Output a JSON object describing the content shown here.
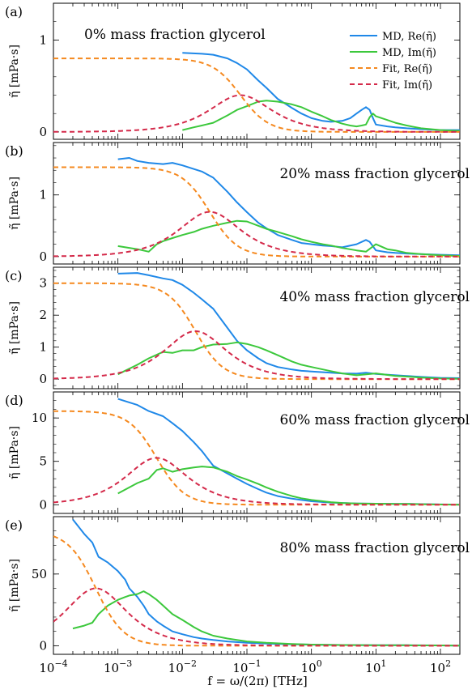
{
  "colors": {
    "md_re": "#1f88e8",
    "md_im": "#3cc83c",
    "fit_re": "#f5891f",
    "fit_im": "#d42a4a"
  },
  "legend": {
    "items": [
      {
        "label": "MD, Re(η̃)",
        "style": "solid",
        "color": "#1f88e8"
      },
      {
        "label": "MD, Im(η̃)",
        "style": "solid",
        "color": "#3cc83c"
      },
      {
        "label": "Fit, Re(η̃)",
        "style": "dashed",
        "color": "#f5891f"
      },
      {
        "label": "Fit, Im(η̃)",
        "style": "dashed",
        "color": "#d42a4a"
      }
    ]
  },
  "xaxis": {
    "label": "f = ω/(2π) [THz]",
    "scale": "log",
    "xlim": [
      0.0001,
      200
    ],
    "ticks": [
      {
        "base": "10",
        "exp": "−4"
      },
      {
        "base": "10",
        "exp": "−3"
      },
      {
        "base": "10",
        "exp": "−2"
      },
      {
        "base": "10",
        "exp": "−1"
      },
      {
        "base": "10",
        "exp": "0"
      },
      {
        "base": "10",
        "exp": "1"
      },
      {
        "base": "10",
        "exp": "2"
      }
    ]
  },
  "chart_data": [
    {
      "type": "line",
      "panel_label": "(a)",
      "title": "0% mass fraction glycerol",
      "ylabel": "η̃ [mPa·s]",
      "ylim": [
        -0.08,
        1.4
      ],
      "yticks": [
        0,
        1
      ],
      "xscale": "log",
      "series": [
        {
          "name": "MD, Re(η̃)",
          "x": [
            0.01,
            0.02,
            0.03,
            0.05,
            0.07,
            0.1,
            0.15,
            0.2,
            0.3,
            0.5,
            0.7,
            1,
            1.5,
            2,
            3,
            4,
            5,
            6,
            7,
            8,
            9,
            10,
            15,
            20,
            30,
            50,
            100,
            200
          ],
          "y": [
            0.86,
            0.85,
            0.84,
            0.8,
            0.75,
            0.68,
            0.56,
            0.48,
            0.36,
            0.26,
            0.2,
            0.15,
            0.12,
            0.11,
            0.12,
            0.15,
            0.2,
            0.24,
            0.27,
            0.24,
            0.15,
            0.08,
            0.06,
            0.05,
            0.04,
            0.03,
            0.02,
            0.02
          ]
        },
        {
          "name": "MD, Im(η̃)",
          "x": [
            0.01,
            0.015,
            0.02,
            0.03,
            0.05,
            0.07,
            0.1,
            0.15,
            0.2,
            0.3,
            0.5,
            0.7,
            1,
            1.5,
            2,
            3,
            4,
            5,
            6,
            7,
            8,
            9,
            10,
            15,
            20,
            30,
            50,
            100,
            200
          ],
          "y": [
            0.02,
            0.05,
            0.07,
            0.1,
            0.18,
            0.24,
            0.28,
            0.33,
            0.34,
            0.33,
            0.3,
            0.27,
            0.22,
            0.17,
            0.13,
            0.09,
            0.07,
            0.06,
            0.07,
            0.08,
            0.16,
            0.2,
            0.17,
            0.13,
            0.1,
            0.07,
            0.04,
            0.02,
            0.01
          ]
        },
        {
          "name": "Fit, Re(η̃)",
          "model": "debye",
          "eta0": 0.8,
          "tau": 2.0,
          "x": [],
          "y": []
        },
        {
          "name": "Fit, Im(η̃)",
          "model": "debye",
          "eta0": 0.8,
          "tau": 2.0,
          "x": [],
          "y": []
        }
      ]
    },
    {
      "type": "line",
      "panel_label": "(b)",
      "title": "20% mass fraction glycerol",
      "ylabel": "η̃ [mPa·s]",
      "ylim": [
        -0.12,
        1.85
      ],
      "yticks": [
        0,
        1
      ],
      "xscale": "log",
      "series": [
        {
          "name": "MD, Re(η̃)",
          "x": [
            0.001,
            0.0015,
            0.002,
            0.003,
            0.005,
            0.007,
            0.01,
            0.015,
            0.02,
            0.03,
            0.05,
            0.07,
            0.1,
            0.15,
            0.2,
            0.3,
            0.5,
            0.7,
            1,
            1.5,
            2,
            3,
            5,
            7,
            8,
            10,
            15,
            20,
            30,
            50,
            100,
            200
          ],
          "y": [
            1.58,
            1.6,
            1.55,
            1.52,
            1.5,
            1.52,
            1.48,
            1.42,
            1.38,
            1.28,
            1.05,
            0.88,
            0.72,
            0.55,
            0.46,
            0.35,
            0.27,
            0.22,
            0.2,
            0.18,
            0.17,
            0.15,
            0.2,
            0.27,
            0.24,
            0.1,
            0.07,
            0.06,
            0.05,
            0.04,
            0.03,
            0.02
          ]
        },
        {
          "name": "MD, Im(η̃)",
          "x": [
            0.001,
            0.002,
            0.003,
            0.004,
            0.005,
            0.007,
            0.01,
            0.015,
            0.02,
            0.03,
            0.05,
            0.07,
            0.1,
            0.15,
            0.2,
            0.3,
            0.5,
            0.7,
            1,
            1.5,
            2,
            3,
            5,
            7,
            10,
            15,
            20,
            30,
            50,
            100,
            200
          ],
          "y": [
            0.17,
            0.12,
            0.08,
            0.2,
            0.25,
            0.3,
            0.35,
            0.4,
            0.45,
            0.5,
            0.55,
            0.58,
            0.57,
            0.5,
            0.45,
            0.4,
            0.33,
            0.28,
            0.24,
            0.2,
            0.18,
            0.14,
            0.1,
            0.08,
            0.2,
            0.12,
            0.1,
            0.06,
            0.04,
            0.02,
            0.01
          ]
        },
        {
          "name": "Fit, Re(η̃)",
          "model": "debye",
          "eta0": 1.45,
          "tau": 6.0,
          "x": [],
          "y": []
        },
        {
          "name": "Fit, Im(η̃)",
          "model": "debye",
          "eta0": 1.45,
          "tau": 6.0,
          "x": [],
          "y": []
        }
      ]
    },
    {
      "type": "line",
      "panel_label": "(c)",
      "title": "40% mass fraction glycerol",
      "ylabel": "η̃ [mPa·s]",
      "ylim": [
        -0.3,
        3.5
      ],
      "yticks": [
        0,
        1,
        2,
        3
      ],
      "xscale": "log",
      "series": [
        {
          "name": "MD, Re(η̃)",
          "x": [
            0.001,
            0.002,
            0.003,
            0.005,
            0.007,
            0.01,
            0.015,
            0.02,
            0.03,
            0.05,
            0.07,
            0.1,
            0.15,
            0.2,
            0.3,
            0.5,
            0.7,
            1,
            2,
            3,
            5,
            7,
            10,
            20,
            30,
            50,
            100,
            200
          ],
          "y": [
            3.3,
            3.32,
            3.25,
            3.15,
            3.1,
            2.95,
            2.7,
            2.5,
            2.2,
            1.6,
            1.2,
            0.9,
            0.65,
            0.5,
            0.38,
            0.3,
            0.26,
            0.24,
            0.2,
            0.18,
            0.17,
            0.2,
            0.16,
            0.12,
            0.1,
            0.07,
            0.04,
            0.03
          ]
        },
        {
          "name": "MD, Im(η̃)",
          "x": [
            0.001,
            0.002,
            0.003,
            0.005,
            0.007,
            0.01,
            0.015,
            0.02,
            0.03,
            0.05,
            0.07,
            0.1,
            0.15,
            0.2,
            0.3,
            0.5,
            0.7,
            1,
            2,
            3,
            5,
            10,
            20,
            30,
            50,
            100,
            200
          ],
          "y": [
            0.15,
            0.45,
            0.65,
            0.85,
            0.82,
            0.9,
            0.9,
            1.0,
            1.08,
            1.1,
            1.15,
            1.1,
            1.0,
            0.9,
            0.75,
            0.55,
            0.45,
            0.38,
            0.25,
            0.18,
            0.12,
            0.18,
            0.1,
            0.08,
            0.05,
            0.02,
            0.01
          ]
        },
        {
          "name": "Fit, Re(η̃)",
          "model": "debye",
          "eta0": 3.0,
          "tau": 10.0,
          "x": [],
          "y": []
        },
        {
          "name": "Fit, Im(η̃)",
          "model": "debye",
          "eta0": 3.0,
          "tau": 10.0,
          "x": [],
          "y": []
        }
      ]
    },
    {
      "type": "line",
      "panel_label": "(d)",
      "title": "60% mass fraction glycerol",
      "ylabel": "η̃ [mPa·s]",
      "ylim": [
        -1.0,
        13.0
      ],
      "yticks": [
        0,
        5,
        10
      ],
      "xscale": "log",
      "series": [
        {
          "name": "MD, Re(η̃)",
          "x": [
            0.001,
            0.0015,
            0.002,
            0.003,
            0.005,
            0.007,
            0.01,
            0.015,
            0.02,
            0.03,
            0.05,
            0.07,
            0.1,
            0.15,
            0.2,
            0.3,
            0.5,
            0.7,
            1,
            2,
            3,
            5,
            10,
            20,
            30,
            50,
            100,
            200
          ],
          "y": [
            12.2,
            11.8,
            11.5,
            10.8,
            10.2,
            9.4,
            8.5,
            7.2,
            6.2,
            4.5,
            3.6,
            3.0,
            2.4,
            1.8,
            1.4,
            1.0,
            0.7,
            0.55,
            0.4,
            0.25,
            0.2,
            0.15,
            0.12,
            0.1,
            0.1,
            0.07,
            0.04,
            0.02
          ]
        },
        {
          "name": "MD, Im(η̃)",
          "x": [
            0.001,
            0.0015,
            0.002,
            0.003,
            0.004,
            0.005,
            0.007,
            0.01,
            0.015,
            0.02,
            0.03,
            0.05,
            0.07,
            0.1,
            0.15,
            0.2,
            0.3,
            0.5,
            0.7,
            1,
            2,
            3,
            5,
            10,
            20,
            30,
            50,
            100,
            200
          ],
          "y": [
            1.3,
            2.0,
            2.5,
            3.0,
            4.0,
            4.2,
            3.8,
            4.1,
            4.3,
            4.4,
            4.3,
            3.8,
            3.3,
            2.9,
            2.4,
            2.0,
            1.5,
            1.0,
            0.75,
            0.55,
            0.3,
            0.2,
            0.15,
            0.12,
            0.1,
            0.1,
            0.06,
            0.03,
            0.01
          ]
        },
        {
          "name": "Fit, Re(η̃)",
          "model": "debye",
          "eta0": 10.8,
          "tau": 40.0,
          "x": [],
          "y": []
        },
        {
          "name": "Fit, Im(η̃)",
          "model": "debye",
          "eta0": 10.8,
          "tau": 40.0,
          "x": [],
          "y": []
        }
      ]
    },
    {
      "type": "line",
      "panel_label": "(e)",
      "title": "80% mass fraction glycerol",
      "ylabel": "η̃ [mPa·s]",
      "ylim": [
        -6,
        90
      ],
      "yticks": [
        0,
        50
      ],
      "xscale": "log",
      "series": [
        {
          "name": "MD, Re(η̃)",
          "x": [
            0.0002,
            0.0003,
            0.0004,
            0.0005,
            0.0007,
            0.001,
            0.0013,
            0.0015,
            0.002,
            0.0025,
            0.003,
            0.004,
            0.005,
            0.007,
            0.01,
            0.015,
            0.02,
            0.03,
            0.05,
            0.1,
            0.2,
            0.5,
            1,
            3,
            10,
            30,
            100,
            200
          ],
          "y": [
            88,
            78,
            72,
            62,
            58,
            52,
            46,
            40,
            34,
            28,
            22,
            17,
            14,
            10,
            8,
            6,
            5,
            4,
            3,
            2,
            1.5,
            1,
            0.7,
            0.5,
            0.3,
            0.3,
            0.2,
            0.1
          ]
        },
        {
          "name": "MD, Im(η̃)",
          "x": [
            0.0002,
            0.0003,
            0.0004,
            0.0005,
            0.0007,
            0.001,
            0.0013,
            0.0015,
            0.002,
            0.0025,
            0.003,
            0.004,
            0.005,
            0.007,
            0.01,
            0.015,
            0.02,
            0.03,
            0.05,
            0.1,
            0.2,
            0.5,
            1,
            3,
            10,
            30,
            100,
            200
          ],
          "y": [
            12,
            14,
            16,
            22,
            28,
            32,
            34,
            35,
            36,
            38,
            36,
            32,
            28,
            22,
            18,
            13,
            10,
            7,
            5,
            3,
            2,
            1.2,
            0.8,
            0.5,
            0.3,
            0.3,
            0.2,
            0.1
          ]
        },
        {
          "name": "Fit, Re(η̃)",
          "model": "debye",
          "eta0": 80.0,
          "tau": 350.0,
          "x": [],
          "y": []
        },
        {
          "name": "Fit, Im(η̃)",
          "model": "debye",
          "eta0": 80.0,
          "tau": 350.0,
          "x": [],
          "y": []
        }
      ]
    }
  ]
}
